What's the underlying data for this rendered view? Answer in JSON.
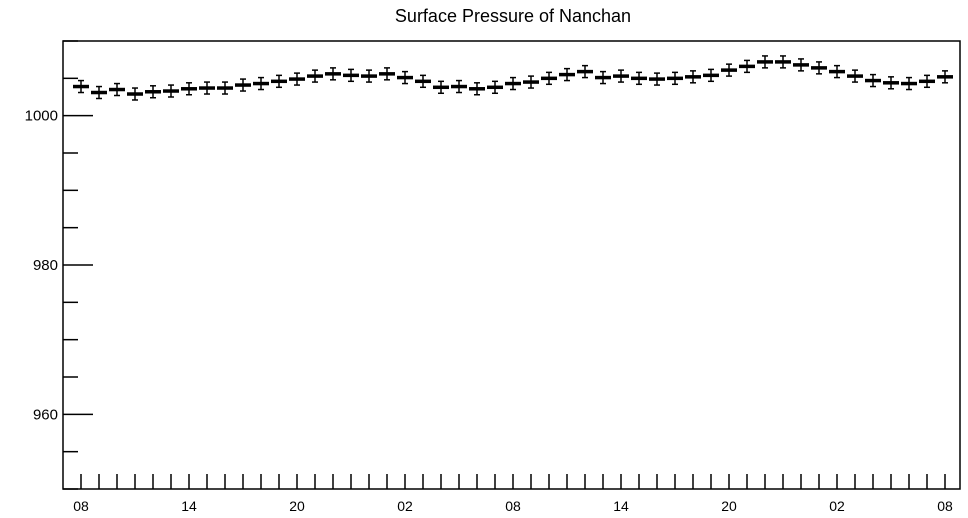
{
  "chart_data": {
    "type": "scatter",
    "title": "Surface Pressure of Nanchan",
    "xlabel": "",
    "ylabel": "",
    "ylim": [
      950,
      1010
    ],
    "y_ticks": [
      960,
      980,
      1000
    ],
    "y_tick_labels": [
      "960",
      "980",
      "1000"
    ],
    "x_tick_labels": [
      "08",
      "14",
      "20",
      "02",
      "08",
      "14",
      "20",
      "02",
      "08"
    ],
    "hours_per_point": 1,
    "error_bar": 0.8,
    "grid": false,
    "series": [
      {
        "values": [
          1003.9,
          1003.1,
          1003.5,
          1002.9,
          1003.2,
          1003.3,
          1003.6,
          1003.7,
          1003.7,
          1004.1,
          1004.3,
          1004.6,
          1004.9,
          1005.3,
          1005.6,
          1005.4,
          1005.3,
          1005.6,
          1005.1,
          1004.6,
          1003.8,
          1003.9,
          1003.6,
          1003.8,
          1004.3,
          1004.5,
          1005.0,
          1005.5,
          1005.9,
          1005.1,
          1005.3,
          1005.0,
          1004.9,
          1005.0,
          1005.2,
          1005.4,
          1006.1,
          1006.6,
          1007.2,
          1007.2,
          1006.8,
          1006.4,
          1005.9,
          1005.3,
          1004.7,
          1004.4,
          1004.3,
          1004.6,
          1005.2
        ]
      }
    ]
  }
}
